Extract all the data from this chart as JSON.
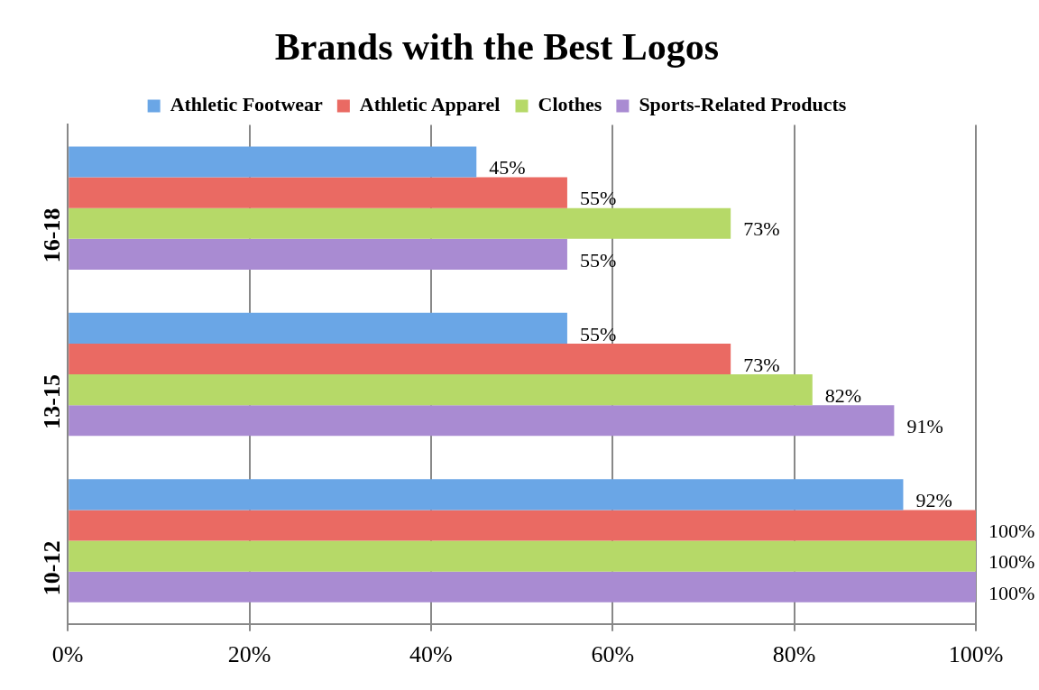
{
  "chart_data": {
    "type": "bar",
    "orientation": "horizontal",
    "title": "Brands with the Best Logos",
    "categories": [
      "16-18",
      "13-15",
      "10-12"
    ],
    "series": [
      {
        "name": "Athletic Footwear",
        "color": "#6aa6e6",
        "values": [
          45,
          55,
          92
        ],
        "value_labels": [
          "45%",
          "55%",
          "92%"
        ]
      },
      {
        "name": "Athletic Apparel",
        "color": "#ea6a63",
        "values": [
          55,
          73,
          100
        ],
        "value_labels": [
          "55%",
          "73%",
          "100%"
        ]
      },
      {
        "name": "Clothes",
        "color": "#b6d968",
        "values": [
          73,
          82,
          100
        ],
        "value_labels": [
          "73%",
          "82%",
          "100%"
        ]
      },
      {
        "name": "Sports-Related Products",
        "color": "#a98bd2",
        "values": [
          55,
          91,
          100
        ],
        "value_labels": [
          "55%",
          "91%",
          "100%"
        ]
      }
    ],
    "xlim": [
      0,
      100
    ],
    "xticks": [
      {
        "value": 0,
        "label": "0%"
      },
      {
        "value": 20,
        "label": "20%"
      },
      {
        "value": 40,
        "label": "40%"
      },
      {
        "value": 60,
        "label": "60%"
      },
      {
        "value": 80,
        "label": "80%"
      },
      {
        "value": 100,
        "label": "100%"
      }
    ],
    "grid": "x",
    "legend": "top"
  }
}
